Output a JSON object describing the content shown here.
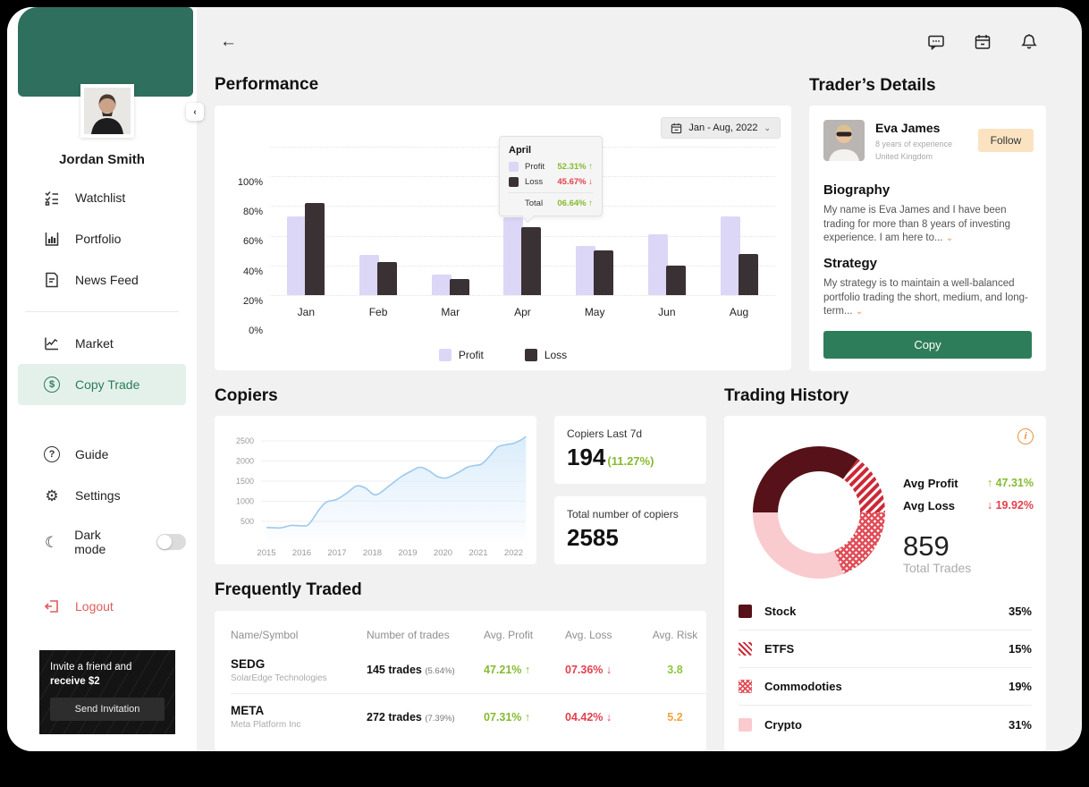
{
  "sidebar": {
    "profile_name": "Jordan Smith",
    "nav": [
      {
        "label": "Watchlist"
      },
      {
        "label": "Portfolio"
      },
      {
        "label": "News Feed"
      },
      {
        "label": "Market"
      },
      {
        "label": "Copy Trade"
      },
      {
        "label": "Guide"
      },
      {
        "label": "Settings"
      }
    ],
    "active_item": "Copy Trade",
    "dark_mode_label": "Dark mode",
    "logout_label": "Logout",
    "invite": {
      "text": "Invite a friend and ",
      "bold": "receive $2",
      "button": "Send Invitation"
    },
    "collapse_glyph": "‹"
  },
  "topbar": {
    "back_glyph": "←"
  },
  "performance": {
    "title": "Performance",
    "date_range": "Jan - Aug, 2022",
    "chart_data": {
      "type": "bar",
      "categories": [
        "Jan",
        "Feb",
        "Mar",
        "Apr",
        "May",
        "Jun",
        "Aug"
      ],
      "series": [
        {
          "name": "Profit",
          "values": [
            53,
            27,
            14,
            52.31,
            33,
            41,
            53
          ],
          "color": "#dcd6f7"
        },
        {
          "name": "Loss",
          "values": [
            62,
            22,
            11,
            45.67,
            30,
            20,
            28
          ],
          "color": "#3a3134"
        }
      ],
      "ylabel": "",
      "xlabel": "",
      "ylim": [
        0,
        100
      ],
      "yticks": [
        "100%",
        "80%",
        "60%",
        "40%",
        "20%",
        "0%"
      ],
      "grid": "dotted horizontal",
      "legend_position": "bottom"
    },
    "tooltip": {
      "month": "April",
      "profit_label": "Profit",
      "profit_value": "52.31% ↑",
      "loss_label": "Loss",
      "loss_value": "45.67% ↓",
      "total_label": "Total",
      "total_value": "06.64% ↑"
    }
  },
  "trader_details": {
    "title": "Trader’s Details",
    "name": "Eva James",
    "experience": "8 years of experience",
    "country": "United Kingdom",
    "follow_button": "Follow",
    "biography_title": "Biography",
    "biography_text": "My name is Eva James and I have been trading for more than 8 years of investing experience. I am here to...",
    "strategy_title": "Strategy",
    "strategy_text": "My strategy is to maintain a well-balanced portfolio trading the short, medium, and long-term...",
    "copy_button": "Copy",
    "more_caret": "⌄"
  },
  "copiers": {
    "title": "Copiers",
    "chart_data": {
      "type": "area",
      "x": [
        2015,
        2015.4,
        2015.7,
        2016,
        2016.2,
        2016.5,
        2016.7,
        2017,
        2017.3,
        2017.55,
        2017.8,
        2018.1,
        2018.5,
        2018.8,
        2019.1,
        2019.35,
        2019.6,
        2019.85,
        2020.1,
        2020.4,
        2020.7,
        2020.9,
        2021.1,
        2021.35,
        2021.55,
        2021.8,
        2022,
        2022.2,
        2022.35
      ],
      "values": [
        350,
        340,
        400,
        390,
        430,
        800,
        980,
        1050,
        1220,
        1380,
        1330,
        1160,
        1400,
        1600,
        1750,
        1845,
        1760,
        1610,
        1580,
        1700,
        1850,
        1890,
        1930,
        2150,
        2350,
        2410,
        2440,
        2520,
        2610
      ],
      "yticks": [
        500,
        1000,
        1500,
        2000,
        2500
      ],
      "xticks": [
        2015,
        2016,
        2017,
        2018,
        2019,
        2020,
        2021,
        2022
      ],
      "line_color": "#9dc9ed",
      "fill_color": "#d6eafa"
    },
    "stat1_label": "Copiers Last 7d",
    "stat1_value": "194",
    "stat1_pct": "(11.27%)",
    "stat2_label": "Total number of copiers",
    "stat2_value": "2585"
  },
  "frequently_traded": {
    "title": "Frequently Traded",
    "headers": [
      "Name/Symbol",
      "Number of trades",
      "Avg. Profit",
      "Avg. Loss",
      "Avg. Risk"
    ],
    "rows": [
      {
        "symbol": "SEDG",
        "company": "SolarEdge Technologies",
        "trades": "145 trades",
        "trades_pct": "(5.64%)",
        "profit": "47.21% ↑",
        "loss": "07.36% ↓",
        "risk": "3.8",
        "risk_level": "green"
      },
      {
        "symbol": "META",
        "company": "Meta Platform Inc",
        "trades": "272 trades",
        "trades_pct": "(7.39%)",
        "profit": "07.31% ↑",
        "loss": "04.42% ↓",
        "risk": "5.2",
        "risk_level": "orange"
      }
    ]
  },
  "trading_history": {
    "title": "Trading History",
    "avg_profit_label": "Avg Profit",
    "avg_profit_value": "↑ 47.31%",
    "avg_loss_label": "Avg Loss",
    "avg_loss_value": "↓ 19.92%",
    "total_trades_value": "859",
    "total_trades_label": "Total Trades",
    "info_glyph": "i",
    "chart_data": {
      "type": "pie",
      "donut": true,
      "start_angle_deg_clockwise_from_north": 270,
      "segments": [
        {
          "label": "Stock",
          "pct": 35,
          "fill": "solid",
          "color": "#571118"
        },
        {
          "label": "ETFS",
          "pct": 15,
          "fill": "stripe",
          "color": "#cc2936"
        },
        {
          "label": "Commodoties",
          "pct": 19,
          "fill": "checker",
          "color": "#e14b56"
        },
        {
          "label": "Crypto",
          "pct": 31,
          "fill": "solid",
          "color": "#f9cbce"
        }
      ]
    }
  },
  "colors": {
    "sidebar_green": "#2f6f5e",
    "active_nav_bg": "#e4f1ea",
    "accent_green": "#2e7d5a",
    "value_green": "#85bb2f",
    "value_red": "#e2414d",
    "follow_peach": "#fbe3c1",
    "info_orange": "#e8923d",
    "profit_lavender": "#dcd6f7",
    "loss_dark": "#3a3134"
  }
}
